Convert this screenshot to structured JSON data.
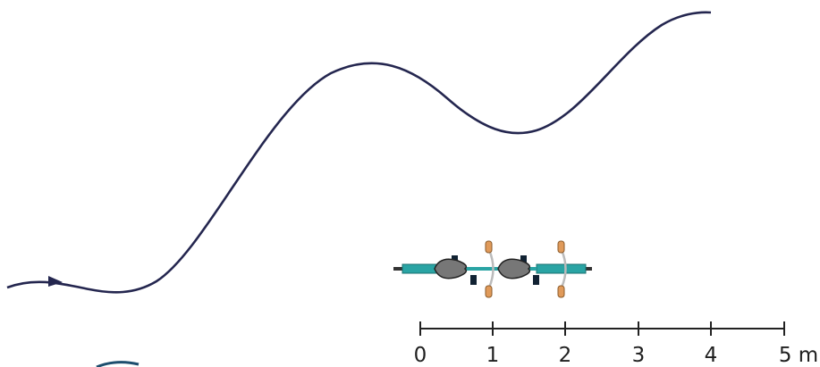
{
  "scale_bar": {
    "labels": [
      "0",
      "1",
      "2",
      "3",
      "4",
      "5 m"
    ]
  }
}
